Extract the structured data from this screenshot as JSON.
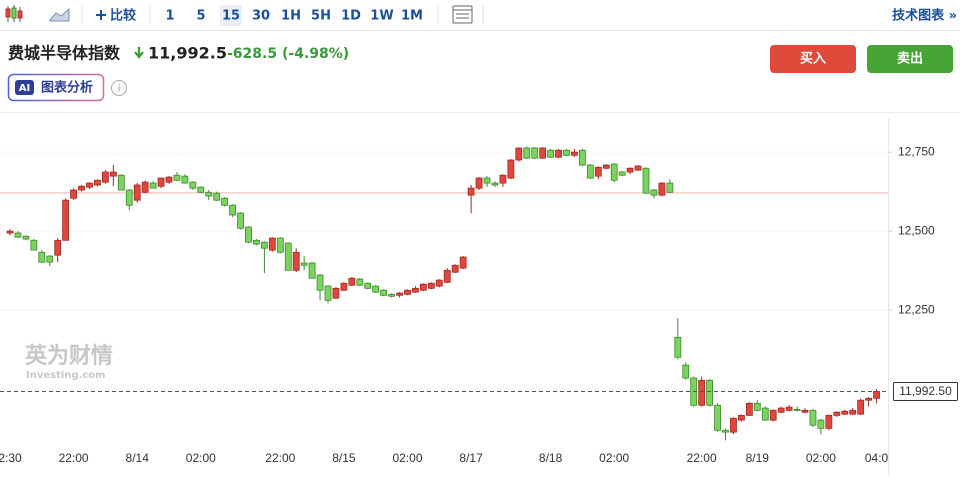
{
  "toolbar": {
    "compare": "比较",
    "intervals": [
      "1",
      "5",
      "15",
      "30",
      "1H",
      "5H",
      "1D",
      "1W",
      "1M"
    ],
    "active_interval": 2,
    "tech_chart": "技术图表 »"
  },
  "header": {
    "name": "费城半导体指数",
    "price": "11,992.5",
    "change": "-628.5",
    "change_pct": "(-4.98%)"
  },
  "buttons": {
    "buy": "买入",
    "sell": "卖出"
  },
  "ai": {
    "badge": "AI",
    "label": "图表分析"
  },
  "watermark": {
    "cn": "英为财情",
    "en": "Investing.com"
  },
  "chart_data": {
    "type": "candlestick",
    "up_color": "#e0473c",
    "down_color": "#7dd35f",
    "ylim": [
      11760,
      12858
    ],
    "yticks": [
      {
        "value": 12250,
        "label": "12,250"
      },
      {
        "value": 12500,
        "label": "12,500"
      },
      {
        "value": 12750,
        "label": "12,750"
      }
    ],
    "grid": true,
    "prev_close": 12621,
    "current_price": {
      "value": 11992.5,
      "label": "11,992.50"
    },
    "categories": [
      "2:30",
      null,
      null,
      null,
      null,
      null,
      null,
      null,
      "22:00",
      null,
      null,
      null,
      null,
      null,
      null,
      null,
      "8/14",
      null,
      null,
      null,
      null,
      null,
      null,
      null,
      "02:00",
      null,
      null,
      null,
      null,
      null,
      null,
      null,
      null,
      null,
      "22:00",
      null,
      null,
      null,
      null,
      null,
      null,
      null,
      "8/15",
      null,
      null,
      null,
      null,
      null,
      null,
      null,
      "02:00",
      null,
      null,
      null,
      null,
      null,
      null,
      null,
      "8/17",
      null,
      null,
      null,
      null,
      null,
      null,
      null,
      null,
      null,
      "8/18",
      null,
      null,
      null,
      null,
      null,
      null,
      null,
      "02:00",
      null,
      null,
      null,
      null,
      null,
      null,
      null,
      null,
      null,
      null,
      "22:00",
      null,
      null,
      null,
      null,
      null,
      null,
      "8/19",
      null,
      null,
      null,
      null,
      null,
      null,
      null,
      "02:00",
      null,
      null,
      null,
      null,
      null,
      null,
      "04:0"
    ],
    "open": [
      12494,
      12494,
      12484,
      12471,
      12433,
      12421,
      12424,
      12471,
      12604,
      12630,
      12639,
      12646,
      12655,
      12674,
      12677,
      12630,
      12598,
      12623,
      12652,
      12642,
      12655,
      12677,
      12674,
      12655,
      12639,
      12623,
      12620,
      12604,
      12582,
      12557,
      12513,
      12471,
      12465,
      12440,
      12478,
      12462,
      12376,
      12399,
      12399,
      12361,
      12326,
      12288,
      12313,
      12329,
      12348,
      12335,
      12326,
      12313,
      12300,
      12297,
      12300,
      12307,
      12313,
      12319,
      12326,
      12338,
      12370,
      12383,
      12614,
      12636,
      12668,
      12652,
      12652,
      12668,
      12725,
      12763,
      12763,
      12731,
      12756,
      12734,
      12756,
      12740,
      12756,
      12709,
      12674,
      12699,
      12712,
      12687,
      12687,
      12693,
      12699,
      12630,
      12614,
      12652,
      12164,
      12076,
      12035,
      11949,
      12028,
      11949,
      11870,
      11864,
      11902,
      11917,
      11955,
      11940,
      11902,
      11927,
      11933,
      11936,
      11927,
      11933,
      11902,
      11876,
      11917,
      11921,
      11921,
      11921,
      11965,
      11971
    ],
    "high": [
      12506,
      12500,
      12487,
      12475,
      12440,
      12424,
      12478,
      12604,
      12636,
      12646,
      12655,
      12664,
      12693,
      12709,
      12680,
      12633,
      12652,
      12661,
      12658,
      12668,
      12674,
      12687,
      12680,
      12658,
      12642,
      12630,
      12625,
      12608,
      12585,
      12560,
      12516,
      12475,
      12468,
      12481,
      12481,
      12465,
      12446,
      12421,
      12402,
      12364,
      12329,
      12323,
      12338,
      12355,
      12352,
      12338,
      12329,
      12316,
      12303,
      12307,
      12316,
      12326,
      12335,
      12338,
      12348,
      12383,
      12395,
      12421,
      12646,
      12671,
      12674,
      12658,
      12680,
      12728,
      12765,
      12768,
      12766,
      12766,
      12760,
      12760,
      12760,
      12760,
      12760,
      12712,
      12705,
      12712,
      12715,
      12690,
      12702,
      12709,
      12702,
      12633,
      12655,
      12664,
      12224,
      12085,
      12040,
      12040,
      12032,
      11955,
      11875,
      11911,
      11920,
      11960,
      11965,
      11945,
      11936,
      11945,
      11950,
      11945,
      11940,
      11937,
      11906,
      11920,
      11930,
      11935,
      11940,
      11970,
      11975,
      12000
    ],
    "low": [
      12487,
      12478,
      12471,
      12440,
      12399,
      12389,
      12402,
      12471,
      12598,
      12625,
      12633,
      12642,
      12650,
      12642,
      12630,
      12566,
      12590,
      12620,
      12636,
      12636,
      12650,
      12658,
      12650,
      12630,
      12620,
      12598,
      12595,
      12578,
      12545,
      12505,
      12462,
      12455,
      12367,
      12435,
      12430,
      12376,
      12370,
      12376,
      12351,
      12281,
      12272,
      12285,
      12310,
      12326,
      12326,
      12316,
      12304,
      12294,
      12290,
      12290,
      12297,
      12304,
      12310,
      12316,
      12322,
      12335,
      12367,
      12380,
      12557,
      12630,
      12640,
      12640,
      12640,
      12664,
      12720,
      12728,
      12728,
      12728,
      12731,
      12730,
      12737,
      12735,
      12705,
      12665,
      12665,
      12695,
      12655,
      12674,
      12680,
      12690,
      12617,
      12604,
      12610,
      12620,
      12095,
      12030,
      11945,
      11945,
      11945,
      11865,
      11838,
      11858,
      11898,
      11915,
      11930,
      11900,
      11898,
      11924,
      11930,
      11930,
      11924,
      11880,
      11857,
      11870,
      11912,
      11918,
      11918,
      11918,
      11945,
      11955
    ],
    "close": [
      12500,
      12481,
      12475,
      12440,
      12402,
      12402,
      12471,
      12598,
      12630,
      12642,
      12652,
      12661,
      12687,
      12687,
      12630,
      12582,
      12646,
      12655,
      12636,
      12668,
      12671,
      12661,
      12652,
      12636,
      12623,
      12611,
      12598,
      12582,
      12551,
      12509,
      12465,
      12459,
      12446,
      12478,
      12433,
      12376,
      12433,
      12392,
      12351,
      12313,
      12281,
      12319,
      12335,
      12351,
      12329,
      12319,
      12307,
      12297,
      12294,
      12304,
      12313,
      12319,
      12332,
      12335,
      12345,
      12376,
      12392,
      12418,
      12636,
      12668,
      12652,
      12646,
      12677,
      12725,
      12763,
      12731,
      12731,
      12763,
      12734,
      12756,
      12740,
      12750,
      12709,
      12668,
      12702,
      12709,
      12661,
      12677,
      12699,
      12706,
      12620,
      12614,
      12652,
      12623,
      12101,
      12035,
      11949,
      12028,
      11949,
      11870,
      11864,
      11908,
      11917,
      11955,
      11933,
      11902,
      11933,
      11940,
      11943,
      11933,
      11933,
      11886,
      11876,
      11917,
      11927,
      11930,
      11933,
      11965,
      11971,
      11992.5
    ]
  }
}
